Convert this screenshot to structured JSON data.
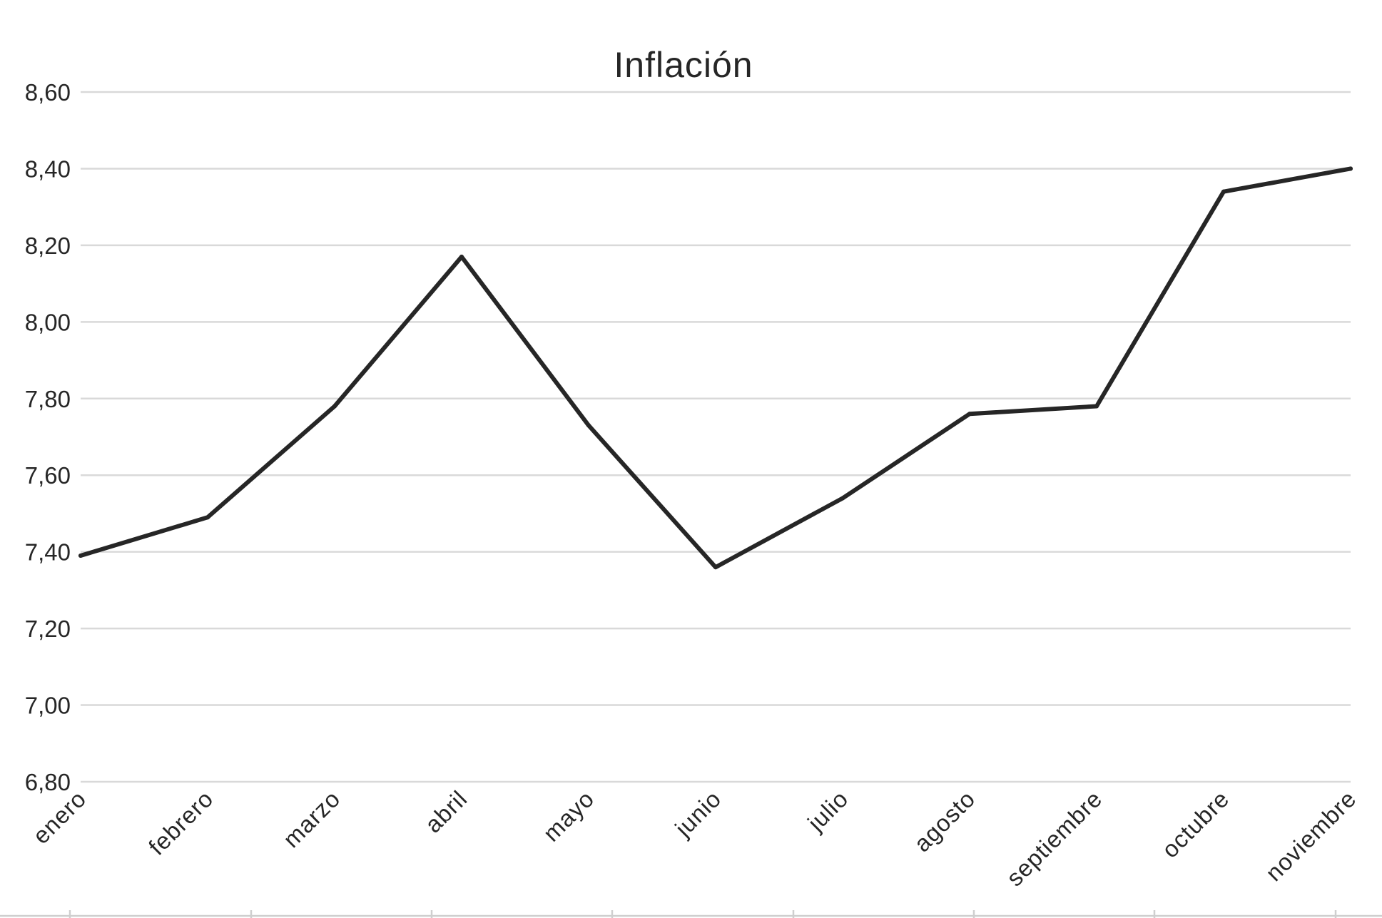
{
  "chart_data": {
    "type": "line",
    "title": "Inflación",
    "xlabel": "",
    "ylabel": "",
    "categories": [
      "enero",
      "febrero",
      "marzo",
      "abril",
      "mayo",
      "junio",
      "julio",
      "agosto",
      "septiembre",
      "octubre",
      "noviembre"
    ],
    "series": [
      {
        "values": [
          7.39,
          7.49,
          7.78,
          8.17,
          7.73,
          7.36,
          7.54,
          7.76,
          7.78,
          8.34,
          8.4
        ],
        "color": "#262626"
      }
    ],
    "ylim": [
      6.8,
      8.6
    ],
    "yticks": [
      "6,80",
      "7,00",
      "7,20",
      "7,40",
      "7,60",
      "7,80",
      "8,00",
      "8,20",
      "8,40",
      "8,60"
    ],
    "grid": true,
    "legend": "none"
  }
}
